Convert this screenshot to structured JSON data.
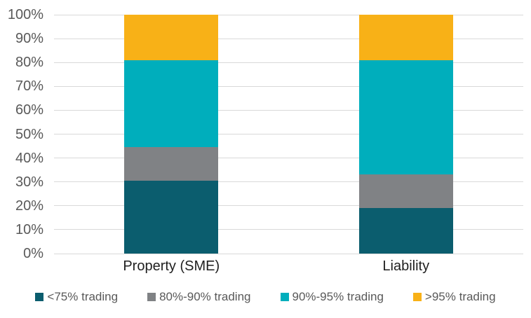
{
  "chart_data": {
    "type": "bar",
    "variant": "stacked-percent",
    "title": "",
    "xlabel": "",
    "ylabel": "",
    "categories": [
      "Property (SME)",
      "Liability"
    ],
    "series": [
      {
        "name": "<75% trading",
        "color": "#0b5d6e",
        "values": [
          30.5,
          19
        ]
      },
      {
        "name": "80%-90% trading",
        "color": "#808285",
        "values": [
          14,
          14
        ]
      },
      {
        "name": "90%-95% trading",
        "color": "#00aebc",
        "values": [
          36.5,
          48
        ]
      },
      {
        "name": ">95% trading",
        "color": "#f8b117",
        "values": [
          19,
          19
        ]
      }
    ],
    "ylim": [
      0,
      100
    ],
    "y_ticks": [
      "0%",
      "10%",
      "20%",
      "30%",
      "40%",
      "50%",
      "60%",
      "70%",
      "80%",
      "90%",
      "100%"
    ],
    "grid": true,
    "legend_position": "bottom"
  },
  "colors": {
    "background": "#ffffff",
    "gridline": "#d9d9d9",
    "tick_label": "#595959",
    "category_label": "#1f1f1f",
    "legend_label": "#595959"
  }
}
